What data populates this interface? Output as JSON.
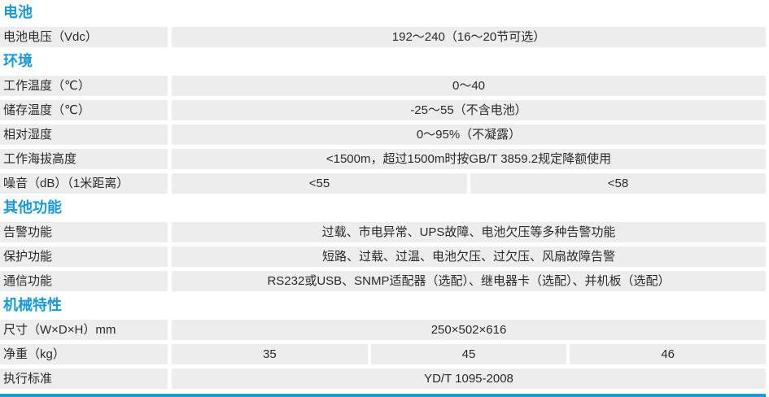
{
  "accent_color": "#1a9ad6",
  "sections": [
    {
      "title": "电池",
      "rows": [
        {
          "label": "电池电压（Vdc）",
          "values": [
            "192～240（16～20节可选）"
          ]
        }
      ]
    },
    {
      "title": "环境",
      "rows": [
        {
          "label": "工作温度（℃）",
          "values": [
            "0～40"
          ]
        },
        {
          "label": "储存温度（℃）",
          "values": [
            "-25～55（不含电池）"
          ]
        },
        {
          "label": "相对湿度",
          "values": [
            "0～95%（不凝露）"
          ]
        },
        {
          "label": "工作海拔高度",
          "values": [
            "<1500m，超过1500m时按GB/T 3859.2规定降额使用"
          ]
        },
        {
          "label": "噪音（dB）（1米距离）",
          "values": [
            "<55",
            "<58"
          ]
        }
      ]
    },
    {
      "title": "其他功能",
      "rows": [
        {
          "label": "告警功能",
          "values": [
            "过载、市电异常、UPS故障、电池欠压等多种告警功能"
          ]
        },
        {
          "label": "保护功能",
          "values": [
            "短路、过载、过温、电池欠压、过欠压、风扇故障告警"
          ]
        },
        {
          "label": "通信功能",
          "values": [
            "RS232或USB、SNMP适配器（选配）、继电器卡（选配）、并机板（选配）"
          ]
        }
      ]
    },
    {
      "title": "机械特性",
      "rows": [
        {
          "label": "尺寸（W×D×H）mm",
          "values": [
            "250×502×616"
          ]
        },
        {
          "label": "净重（kg）",
          "values": [
            "35",
            "45",
            "46"
          ]
        },
        {
          "label": "执行标准",
          "values": [
            "YD/T 1095-2008"
          ]
        }
      ]
    }
  ]
}
